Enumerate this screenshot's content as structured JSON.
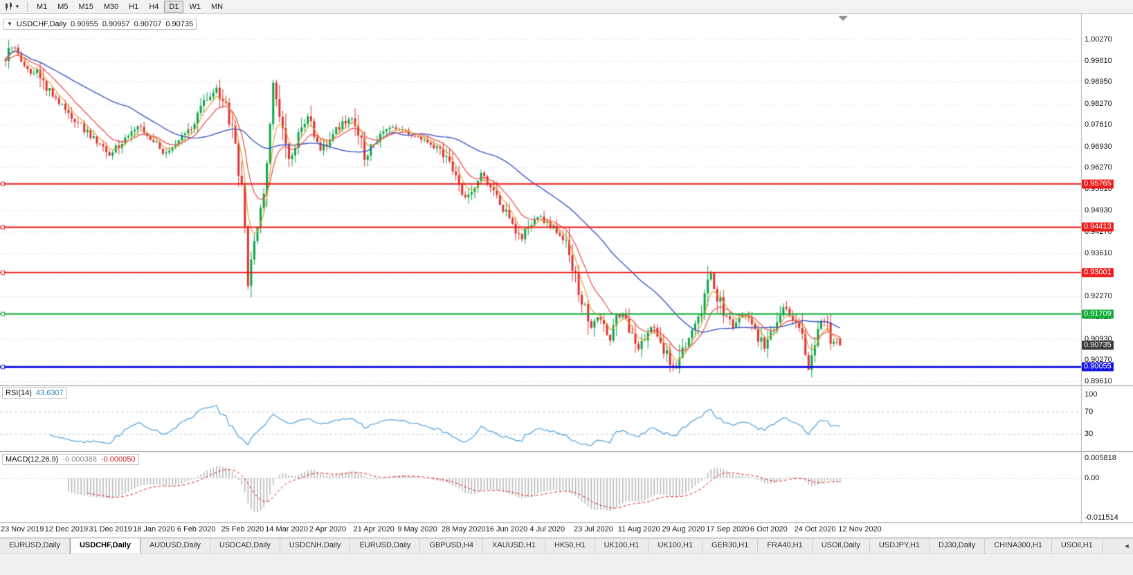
{
  "toolbar": {
    "timeframes": [
      {
        "label": "M1",
        "active": false
      },
      {
        "label": "M5",
        "active": false
      },
      {
        "label": "M15",
        "active": false
      },
      {
        "label": "M30",
        "active": false
      },
      {
        "label": "H1",
        "active": false
      },
      {
        "label": "H4",
        "active": false
      },
      {
        "label": "D1",
        "active": true
      },
      {
        "label": "W1",
        "active": false
      },
      {
        "label": "MN",
        "active": false
      }
    ]
  },
  "chart": {
    "title": "USDCHF,Daily",
    "ohlc": {
      "open": "0.90955",
      "high": "0.90957",
      "low": "0.90707",
      "close": "0.90735"
    }
  },
  "price_scale": {
    "labels": [
      "1.00270",
      "0.99610",
      "0.98950",
      "0.98270",
      "0.97610",
      "0.96930",
      "0.96270",
      "0.95610",
      "0.94930",
      "0.94270",
      "0.93610",
      "0.92930",
      "0.92270",
      "0.91610",
      "0.90930",
      "0.90270",
      "0.89610"
    ],
    "current_price": "0.90735",
    "current_price_bg": "#3c3c3c"
  },
  "hlines": [
    {
      "price": 0.95765,
      "label": "0.95765",
      "color": "#ee1b1b",
      "thickness": 2
    },
    {
      "price": 0.94413,
      "label": "0.94413",
      "color": "#ee1b1b",
      "thickness": 2
    },
    {
      "price": 0.93001,
      "label": "0.93001",
      "color": "#ee1b1b",
      "thickness": 2
    },
    {
      "price": 0.91709,
      "label": "0.91709",
      "color": "#12ad3a",
      "thickness": 2
    },
    {
      "price": 0.90055,
      "label": "0.90055",
      "color": "#1515e8",
      "thickness": 3
    }
  ],
  "date_axis": {
    "labels": [
      "23 Nov 2019",
      "12 Dec 2019",
      "31 Dec 2019",
      "18 Jan 2020",
      "6 Feb 2020",
      "25 Feb 2020",
      "14 Mar 2020",
      "2 Apr 2020",
      "21 Apr 2020",
      "9 May 2020",
      "28 May 2020",
      "16 Jun 2020",
      "4 Jul 2020",
      "23 Jul 2020",
      "11 Aug 2020",
      "29 Aug 2020",
      "17 Sep 2020",
      "6 Oct 2020",
      "24 Oct 2020",
      "12 Nov 2020"
    ]
  },
  "rsi_pane": {
    "title": "RSI(14)",
    "value": "43.6307",
    "scale_labels": [
      "100",
      "70",
      "30"
    ],
    "levels": [
      70,
      30
    ],
    "line_color": "#4aa0df"
  },
  "macd_pane": {
    "title": "MACD(12,26,9)",
    "value": "-0.000388",
    "signal_value": "-0.000050",
    "scale_labels": [
      "0.005818",
      "0.00",
      "-0.011514"
    ],
    "histogram_color": "#b9b9b9",
    "signal_color": "#e02222"
  },
  "tabs": [
    {
      "label": "EURUSD,Daily",
      "active": false
    },
    {
      "label": "USDCHF,Daily",
      "active": true
    },
    {
      "label": "AUDUSD,Daily",
      "active": false
    },
    {
      "label": "USDCAD,Daily",
      "active": false
    },
    {
      "label": "USDCNH,Daily",
      "active": false
    },
    {
      "label": "EURUSD,Daily",
      "active": false
    },
    {
      "label": "GBPUSD,H4",
      "active": false
    },
    {
      "label": "XAUUSD,H1",
      "active": false
    },
    {
      "label": "HK50,H1",
      "active": false
    },
    {
      "label": "UK100,H1",
      "active": false
    },
    {
      "label": "UK100,H1",
      "active": false
    },
    {
      "label": "GER30,H1",
      "active": false
    },
    {
      "label": "FRA40,H1",
      "active": false
    },
    {
      "label": "USOil,Daily",
      "active": false
    },
    {
      "label": "USDJPY,H1",
      "active": false
    },
    {
      "label": "DJ30,Daily",
      "active": false
    },
    {
      "label": "CHINA300,H1",
      "active": false
    },
    {
      "label": "USOil,H1",
      "active": false
    }
  ],
  "tab_scroll_icon": "◄",
  "chart_data": {
    "type": "candlestick",
    "symbol": "USDCHF",
    "timeframe": "Daily",
    "candles": 266,
    "y_range": [
      0.8961,
      1.0027
    ],
    "x_start_label": "23 Nov 2019",
    "x_end_label": "12 Nov 2020",
    "last_candle": {
      "open": 0.90955,
      "high": 0.90957,
      "low": 0.90707,
      "close": 0.90735
    },
    "colors": {
      "up": "#0aa546",
      "down": "#e03030",
      "ma_fast": "#e2a33b",
      "ma_mid": "#e84848",
      "ma_slow": "#3c55c8"
    },
    "moving_averages": [
      {
        "period": 5,
        "type": "ema",
        "color_key": "ma_fast"
      },
      {
        "period": 12,
        "type": "ema",
        "color_key": "ma_mid"
      },
      {
        "period": 40,
        "type": "sma",
        "color_key": "ma_slow"
      }
    ],
    "indicators": [
      {
        "name": "RSI",
        "period": 14,
        "last_value": 43.6307
      },
      {
        "name": "MACD",
        "fast": 12,
        "slow": 26,
        "signal": 9,
        "last_value": -0.000388,
        "last_signal": -5e-05
      }
    ],
    "horizontal_levels": [
      0.95765,
      0.94413,
      0.93001,
      0.91709,
      0.90055
    ],
    "close_waypoints": [
      [
        0,
        0.9965
      ],
      [
        2,
        1.0005
      ],
      [
        4,
        0.9975
      ],
      [
        6,
        0.994
      ],
      [
        8,
        0.992
      ],
      [
        10,
        0.9942
      ],
      [
        12,
        0.9892
      ],
      [
        15,
        0.9852
      ],
      [
        18,
        0.982
      ],
      [
        21,
        0.9785
      ],
      [
        24,
        0.9756
      ],
      [
        27,
        0.9726
      ],
      [
        30,
        0.97
      ],
      [
        33,
        0.9668
      ],
      [
        36,
        0.9698
      ],
      [
        40,
        0.9733
      ],
      [
        43,
        0.9757
      ],
      [
        46,
        0.9722
      ],
      [
        50,
        0.9674
      ],
      [
        53,
        0.969
      ],
      [
        56,
        0.9718
      ],
      [
        59,
        0.9758
      ],
      [
        62,
        0.9812
      ],
      [
        65,
        0.9856
      ],
      [
        67,
        0.9871
      ],
      [
        69,
        0.9836
      ],
      [
        71,
        0.9782
      ],
      [
        73,
        0.97
      ],
      [
        75,
        0.9552
      ],
      [
        76,
        0.943
      ],
      [
        77,
        0.9255
      ],
      [
        78,
        0.9345
      ],
      [
        80,
        0.942
      ],
      [
        82,
        0.9555
      ],
      [
        84,
        0.9775
      ],
      [
        85,
        0.9882
      ],
      [
        86,
        0.9848
      ],
      [
        88,
        0.9762
      ],
      [
        90,
        0.9662
      ],
      [
        92,
        0.97
      ],
      [
        94,
        0.9752
      ],
      [
        96,
        0.9782
      ],
      [
        98,
        0.9718
      ],
      [
        100,
        0.9682
      ],
      [
        102,
        0.9702
      ],
      [
        104,
        0.9736
      ],
      [
        107,
        0.9766
      ],
      [
        110,
        0.9788
      ],
      [
        112,
        0.9744
      ],
      [
        114,
        0.9652
      ],
      [
        116,
        0.969
      ],
      [
        119,
        0.9728
      ],
      [
        122,
        0.9754
      ],
      [
        126,
        0.9744
      ],
      [
        130,
        0.9722
      ],
      [
        134,
        0.9706
      ],
      [
        138,
        0.9682
      ],
      [
        140,
        0.9652
      ],
      [
        142,
        0.962
      ],
      [
        144,
        0.9576
      ],
      [
        146,
        0.9532
      ],
      [
        148,
        0.956
      ],
      [
        151,
        0.9608
      ],
      [
        154,
        0.9562
      ],
      [
        157,
        0.9512
      ],
      [
        160,
        0.9472
      ],
      [
        162,
        0.9427
      ],
      [
        164,
        0.9397
      ],
      [
        166,
        0.9444
      ],
      [
        169,
        0.9476
      ],
      [
        172,
        0.9456
      ],
      [
        175,
        0.9432
      ],
      [
        178,
        0.9386
      ],
      [
        180,
        0.9322
      ],
      [
        182,
        0.9242
      ],
      [
        184,
        0.9182
      ],
      [
        186,
        0.9122
      ],
      [
        188,
        0.9164
      ],
      [
        190,
        0.9132
      ],
      [
        192,
        0.9086
      ],
      [
        194,
        0.9158
      ],
      [
        196,
        0.9172
      ],
      [
        198,
        0.912
      ],
      [
        201,
        0.9062
      ],
      [
        203,
        0.9092
      ],
      [
        205,
        0.9136
      ],
      [
        208,
        0.9082
      ],
      [
        211,
        0.9022
      ],
      [
        213,
        0.9006
      ],
      [
        215,
        0.9066
      ],
      [
        217,
        0.9092
      ],
      [
        219,
        0.913
      ],
      [
        221,
        0.919
      ],
      [
        223,
        0.9272
      ],
      [
        224,
        0.9296
      ],
      [
        226,
        0.9232
      ],
      [
        228,
        0.9172
      ],
      [
        231,
        0.9132
      ],
      [
        234,
        0.9164
      ],
      [
        237,
        0.915
      ],
      [
        239,
        0.9102
      ],
      [
        241,
        0.9062
      ],
      [
        243,
        0.9106
      ],
      [
        245,
        0.916
      ],
      [
        247,
        0.9198
      ],
      [
        249,
        0.9172
      ],
      [
        251,
        0.9142
      ],
      [
        253,
        0.912
      ],
      [
        255,
        0.8992
      ],
      [
        256,
        0.9058
      ],
      [
        258,
        0.913
      ],
      [
        260,
        0.9152
      ],
      [
        262,
        0.9092
      ],
      [
        264,
        0.908
      ],
      [
        265,
        0.9074
      ]
    ]
  }
}
